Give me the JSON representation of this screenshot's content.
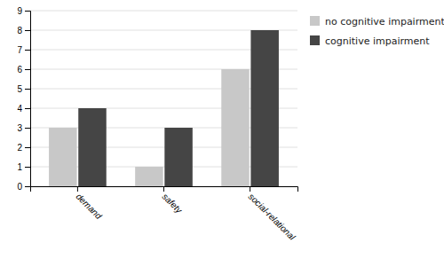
{
  "chart_data": {
    "type": "bar",
    "categories": [
      "demand",
      "safety",
      "social-relational"
    ],
    "series": [
      {
        "name": "no cognitive impairment",
        "color": "#c8c8c8",
        "values": [
          3,
          1,
          6
        ]
      },
      {
        "name": "cognitive impairment",
        "color": "#454545",
        "values": [
          4,
          3,
          8
        ]
      }
    ],
    "ylim": [
      0,
      9
    ],
    "yticks": [
      0,
      1,
      2,
      3,
      4,
      5,
      6,
      7,
      8,
      9
    ],
    "grid": true,
    "legend": "right"
  }
}
